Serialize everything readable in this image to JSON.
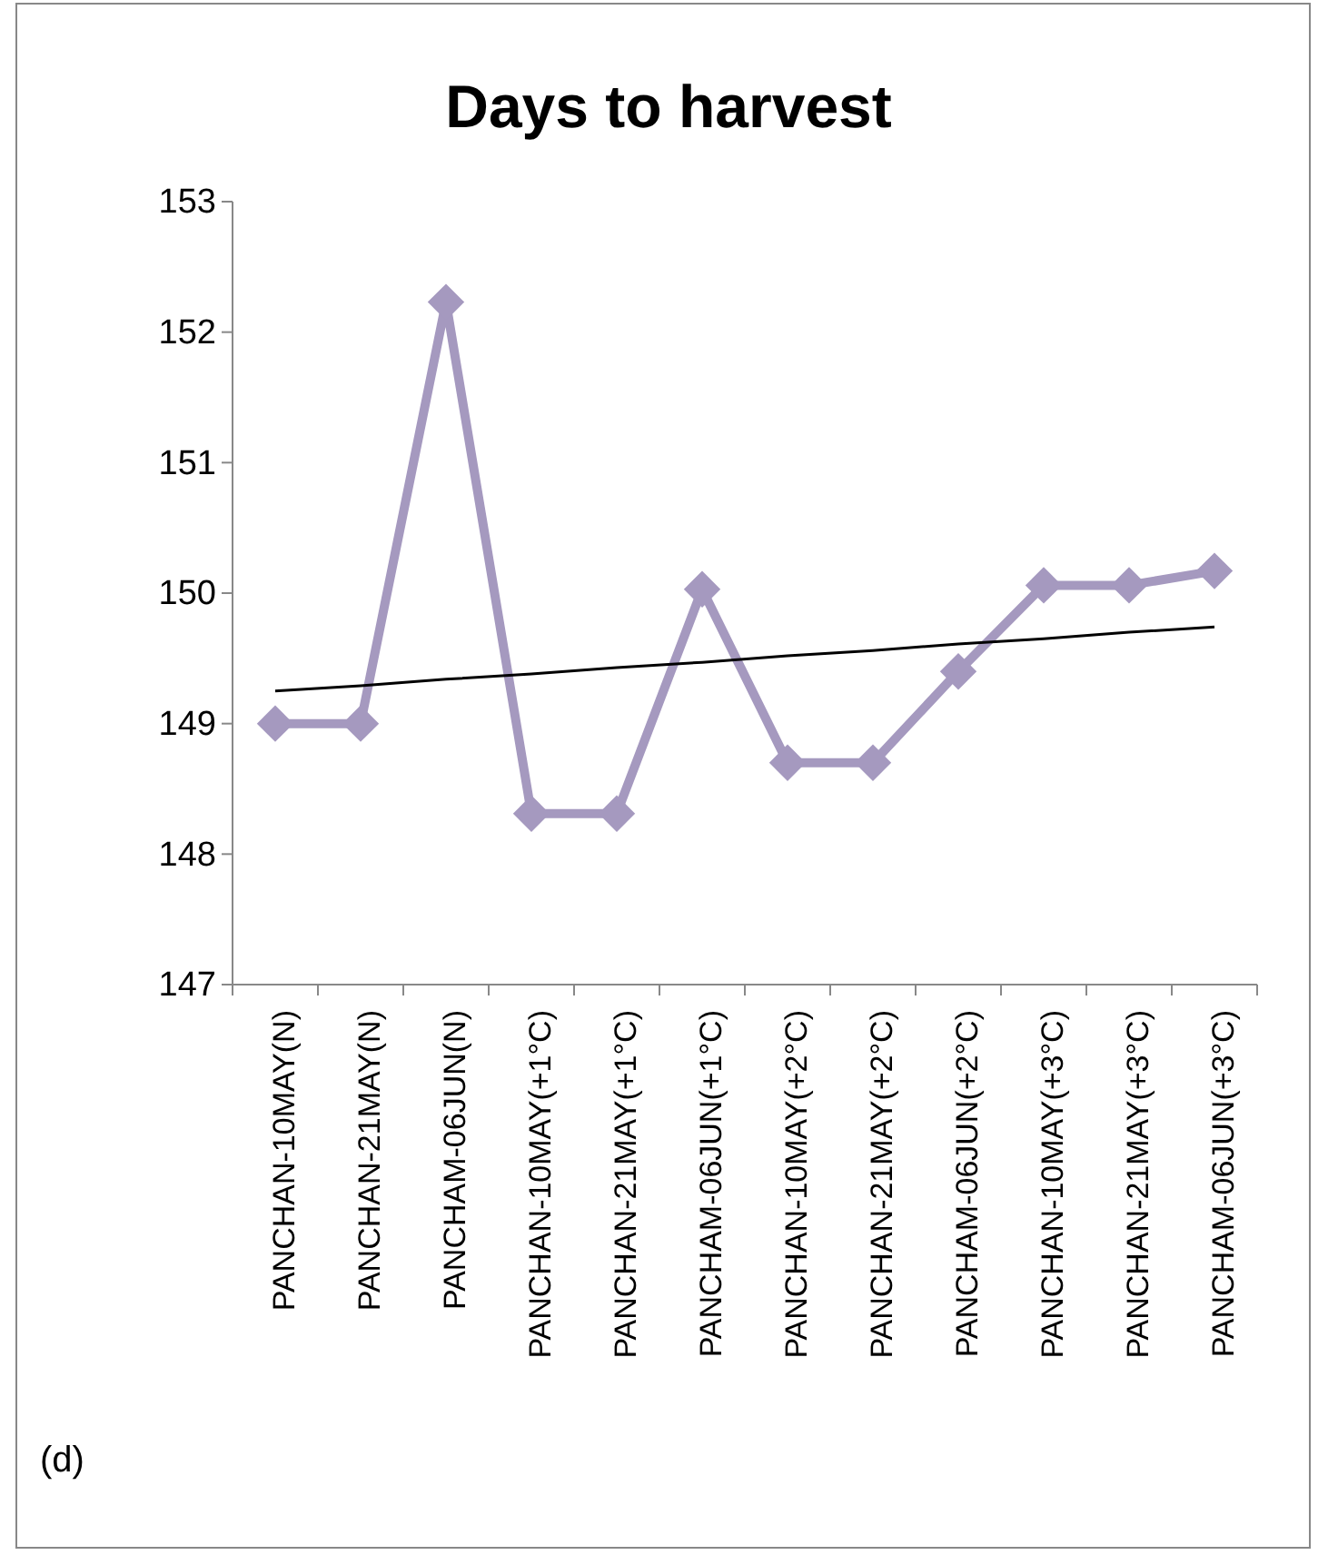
{
  "chart_data": {
    "type": "line",
    "title": "Days to harvest",
    "categories": [
      "PANCHAN-10MAY(N)",
      "PANCHAN-21MAY(N)",
      "PANCHAM-06JUN(N)",
      "PANCHAN-10MAY(+1°C)",
      "PANCHAN-21MAY(+1°C)",
      "PANCHAM-06JUN(+1°C)",
      "PANCHAN-10MAY(+2°C)",
      "PANCHAN-21MAY(+2°C)",
      "PANCHAM-06JUN(+2°C)",
      "PANCHAN-10MAY(+3°C)",
      "PANCHAN-21MAY(+3°C)",
      "PANCHAM-06JUN(+3°C)"
    ],
    "series": [
      {
        "color": "#a599bf",
        "marker": "diamond",
        "values": [
          149.0,
          149.0,
          152.23,
          148.31,
          148.31,
          150.03,
          148.7,
          148.7,
          149.4,
          150.06,
          150.06,
          150.17
        ]
      },
      {
        "color": "#000000",
        "marker": "none",
        "values": [
          149.25,
          149.29,
          149.34,
          149.38,
          149.43,
          149.47,
          149.52,
          149.56,
          149.61,
          149.65,
          149.7,
          149.74
        ]
      }
    ],
    "ylim": [
      147,
      153
    ],
    "yticks": [
      147,
      148,
      149,
      150,
      151,
      152,
      153
    ],
    "grid": false,
    "annotations": [
      "(d)"
    ]
  }
}
